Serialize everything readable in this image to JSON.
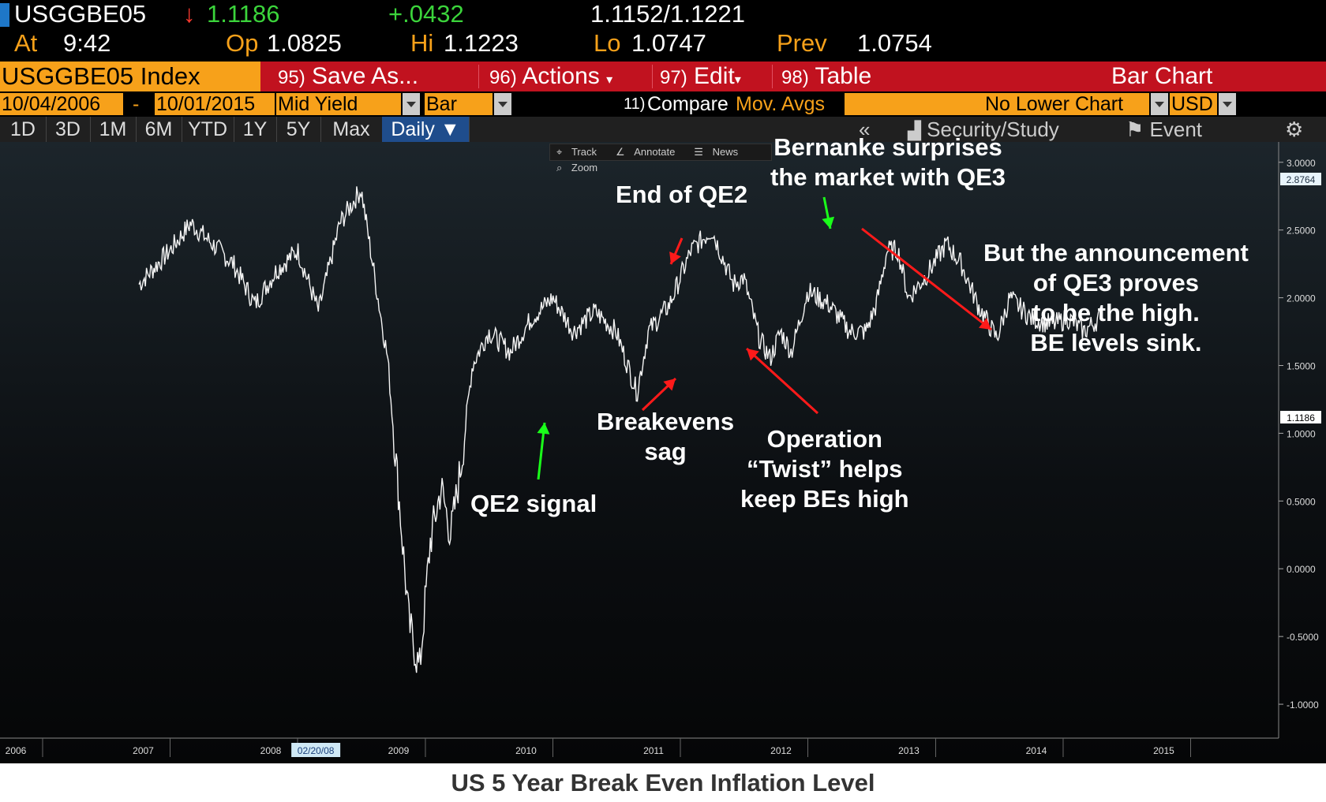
{
  "quote": {
    "ticker": "USGGBE05",
    "last_arrow": "↓",
    "last": "1.1186",
    "change": "+.0432",
    "bid_ask": "1.1152/1.1221",
    "at_label": "At",
    "time": "9:42",
    "open_label": "Op",
    "open": "1.0825",
    "high_label": "Hi",
    "high": "1.1223",
    "low_label": "Lo",
    "low": "1.0747",
    "prev_label": "Prev",
    "prev": "1.0754"
  },
  "toolbar": {
    "index_label": "USGGBE05 Index",
    "save_num": "95)",
    "save_label": "Save As...",
    "actions_num": "96)",
    "actions_label": "Actions",
    "edit_num": "97)",
    "edit_label": "Edit",
    "table_num": "98)",
    "table_label": "Table",
    "chart_type_label": "Bar Chart"
  },
  "settings": {
    "start_date": "10/04/2006",
    "dash": "-",
    "end_date": "10/01/2015",
    "field": "Mid Yield",
    "style": "Bar",
    "compare_num": "11)",
    "compare_label": "Compare",
    "mov_avgs": "Mov. Avgs",
    "lower_chart": "No Lower Chart",
    "currency": "USD"
  },
  "ranges": {
    "items": [
      "1D",
      "3D",
      "1M",
      "6M",
      "YTD",
      "1Y",
      "5Y",
      "Max"
    ],
    "frequency": "Daily",
    "collapse": "«",
    "security_study": "Security/Study",
    "event": "Event"
  },
  "minitoolbar": {
    "track": "Track",
    "annotate": "Annotate",
    "news": "News",
    "zoom": "Zoom"
  },
  "chart_data": {
    "type": "line",
    "title": "US 5 Year Break Even Inflation Level",
    "ylim": [
      -1.25,
      3.15
    ],
    "y_ticks": [
      "3.0000",
      "2.5000",
      "2.0000",
      "1.5000",
      "1.0000",
      "0.5000",
      "0.0000",
      "-0.5000",
      "-1.0000"
    ],
    "x_ticks": [
      "2006",
      "2007",
      "2008",
      "2009",
      "2010",
      "2011",
      "2012",
      "2013",
      "2014",
      "2015"
    ],
    "cursor_date": "02/20/08",
    "last_value_label": "1.1186",
    "high_value_label": "2.8764",
    "series": [
      {
        "x": [
          "2006-10-04",
          "2007-01-01",
          "2007-03-01",
          "2007-05-01",
          "2007-07-01",
          "2007-09-01",
          "2007-11-01",
          "2008-01-01",
          "2008-03-01",
          "2008-05-01",
          "2008-07-01",
          "2008-08-15",
          "2008-09-15",
          "2008-10-15",
          "2008-11-15",
          "2008-12-15",
          "2009-01-15",
          "2009-02-15",
          "2009-03-15",
          "2009-04-15",
          "2009-05-15",
          "2009-07-01",
          "2009-09-01",
          "2009-11-01",
          "2010-01-01",
          "2010-03-01",
          "2010-05-01",
          "2010-07-01",
          "2010-08-30",
          "2010-10-01",
          "2010-12-01",
          "2011-02-01",
          "2011-04-01",
          "2011-06-01",
          "2011-07-01",
          "2011-08-15",
          "2011-09-15",
          "2011-10-15",
          "2011-11-15",
          "2012-01-01",
          "2012-03-01",
          "2012-05-01",
          "2012-06-15",
          "2012-07-15",
          "2012-08-15",
          "2012-09-15",
          "2012-10-15",
          "2012-12-01",
          "2013-02-01",
          "2013-03-15",
          "2013-05-01",
          "2013-06-25",
          "2013-08-01",
          "2013-10-01",
          "2013-12-01",
          "2014-01-15",
          "2014-03-01",
          "2014-04-15"
        ],
        "y": [
          2.1,
          2.35,
          2.55,
          2.4,
          2.25,
          1.95,
          2.2,
          2.35,
          1.9,
          2.55,
          2.8,
          2.05,
          1.55,
          0.6,
          -0.4,
          -0.75,
          0.2,
          0.6,
          0.25,
          0.8,
          1.5,
          1.75,
          1.6,
          1.85,
          2.0,
          1.75,
          1.9,
          1.75,
          1.3,
          1.75,
          1.95,
          2.35,
          2.5,
          2.1,
          2.15,
          1.7,
          1.55,
          1.75,
          1.6,
          2.05,
          1.95,
          1.75,
          1.75,
          1.95,
          2.35,
          2.35,
          2.0,
          2.15,
          2.4,
          2.25,
          1.95,
          1.7,
          2.0,
          1.85,
          1.8,
          1.85,
          1.75,
          1.85
        ]
      }
    ]
  },
  "annotations": {
    "qe2_signal": [
      "QE2 signal"
    ],
    "breakevens_sag": [
      "Breakevens",
      "sag"
    ],
    "end_qe2": [
      "End of QE2"
    ],
    "twist": [
      "Operation",
      "“Twist” helps",
      "keep BEs high"
    ],
    "qe3": [
      "Bernanke surprises",
      "the market with QE3"
    ],
    "announcement": [
      "But the announcement",
      "of QE3 proves",
      "to be the high.",
      "BE levels sink."
    ]
  },
  "colors": {
    "green_arrow": "#1aff1a",
    "red_arrow": "#ff1a1a",
    "orange": "#f7a11a",
    "toolbar_red": "#c1121f"
  }
}
